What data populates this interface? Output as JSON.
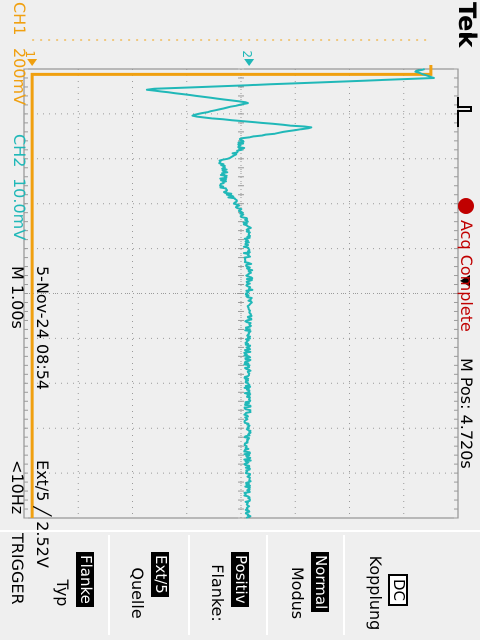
{
  "header": {
    "brand": "Tek",
    "trigger_status": "Acq Complete",
    "horizontal_position": "M Pos: 4.720s"
  },
  "channels": {
    "ch1_label": "CH1",
    "ch1_scale": "200mV",
    "ch1_marker": "1",
    "ch2_label": "CH2",
    "ch2_scale": "10.0mV",
    "ch2_marker": "2"
  },
  "footer": {
    "timebase": "M 1.00s",
    "date_time": "5-Nov-24 08:54",
    "trigger_source_level": "Ext/5 ╱ 2.52V",
    "frequency": "<10Hz"
  },
  "trigger_menu": {
    "title": "TRIGGER",
    "items": [
      {
        "label": "Typ",
        "value": "Flanke"
      },
      {
        "label": "Quelle",
        "value": "Ext/5"
      },
      {
        "label": "Flanke:",
        "value": "Positiv"
      },
      {
        "label": "Modus",
        "value": "Normal"
      },
      {
        "label": "Kopplung",
        "value": "DC"
      }
    ]
  },
  "colors": {
    "ch1": "#f0a010",
    "ch2": "#20b8b8",
    "status_red": "#c00000",
    "background": "#efefef"
  },
  "ch1_trace": {
    "pulse_high_until_s": 0.12,
    "level_high_div": 3.5,
    "level_low_div": -3.85
  },
  "ch2_trace": {
    "time_s": [
      0.0,
      0.05,
      0.2,
      0.45,
      0.75,
      1.05,
      1.3,
      1.55,
      1.8,
      2.05,
      2.3,
      2.6,
      2.9,
      3.2,
      3.6,
      4.0,
      4.5,
      5.0,
      6.0,
      7.0,
      8.0,
      9.0
    ],
    "value_div": [
      3.4,
      3.2,
      3.55,
      -1.8,
      0.15,
      -0.95,
      1.3,
      0.0,
      0.0,
      -0.35,
      -0.3,
      -0.35,
      -0.15,
      0.0,
      0.15,
      0.1,
      0.15,
      0.15,
      0.12,
      0.12,
      0.12,
      0.12
    ]
  }
}
